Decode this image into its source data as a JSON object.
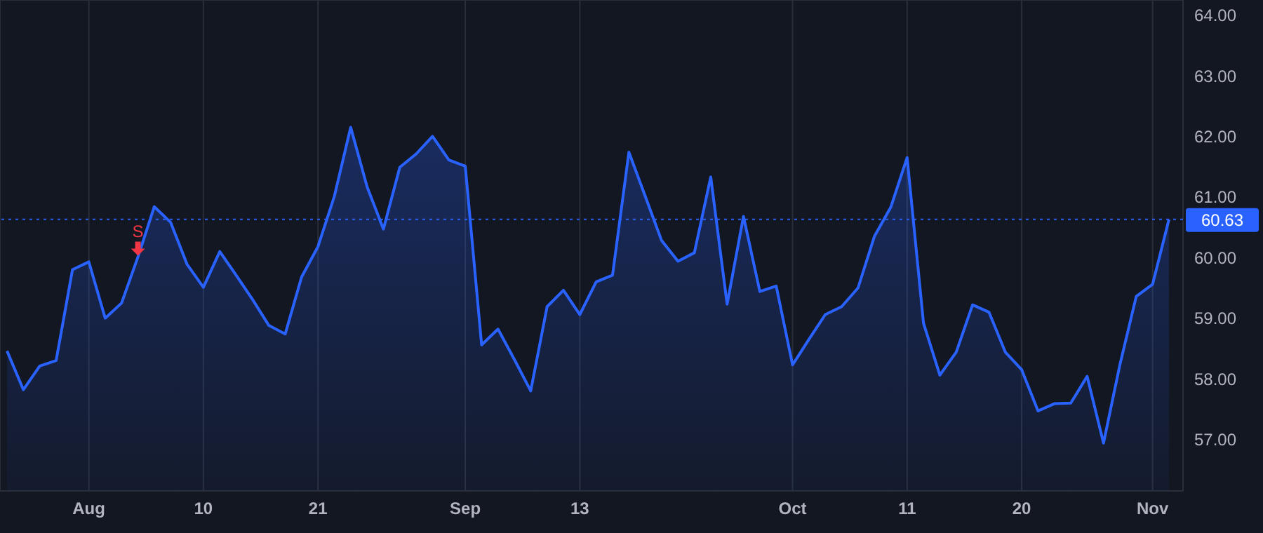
{
  "chart_data": {
    "type": "area",
    "categories": [
      null,
      null,
      null,
      null,
      null,
      "Aug",
      null,
      null,
      null,
      null,
      null,
      null,
      "10",
      null,
      null,
      null,
      null,
      null,
      null,
      "21",
      null,
      null,
      null,
      null,
      null,
      null,
      null,
      null,
      "Sep",
      null,
      null,
      null,
      null,
      null,
      null,
      "13",
      null,
      null,
      null,
      null,
      null,
      null,
      null,
      null,
      null,
      null,
      null,
      null,
      "Oct",
      null,
      null,
      null,
      null,
      null,
      null,
      "11",
      null,
      null,
      null,
      null,
      null,
      null,
      "20",
      null,
      null,
      null,
      null,
      null,
      null,
      null,
      "Nov",
      null
    ],
    "series": [
      {
        "color": "#2962ff",
        "values": [
          58.46,
          57.82,
          58.21,
          58.3,
          59.8,
          59.93,
          59.0,
          59.25,
          60.01,
          60.84,
          60.58,
          59.89,
          59.51,
          60.1,
          59.71,
          59.31,
          58.88,
          58.74,
          59.68,
          60.18,
          61.01,
          62.15,
          61.17,
          60.47,
          61.49,
          61.71,
          62.0,
          61.61,
          61.51,
          58.56,
          58.82,
          58.32,
          57.8,
          59.19,
          59.46,
          59.06,
          59.6,
          59.71,
          61.74,
          61.01,
          60.28,
          59.94,
          60.08,
          61.33,
          59.23,
          60.68,
          59.44,
          59.53,
          58.23,
          58.65,
          59.06,
          59.19,
          59.5,
          60.35,
          60.83,
          61.65,
          58.92,
          58.06,
          58.44,
          59.22,
          59.1,
          58.44,
          58.15,
          57.47,
          57.59,
          57.6,
          58.04,
          56.94,
          58.23,
          59.36,
          59.56,
          60.63
        ]
      }
    ],
    "ylim": [
      56.15,
      64.25
    ],
    "yticks": [
      {
        "value": 57,
        "label": "57.00"
      },
      {
        "value": 58,
        "label": "58.00"
      },
      {
        "value": 59,
        "label": "59.00"
      },
      {
        "value": 60,
        "label": "60.00"
      },
      {
        "value": 61,
        "label": "61.00"
      },
      {
        "value": 62,
        "label": "62.00"
      },
      {
        "value": 63,
        "label": "63.00"
      },
      {
        "value": 64,
        "label": "64.00"
      }
    ],
    "grid": true,
    "ref_lines": [
      {
        "axis": "y",
        "value": 60.63,
        "label": "60.63",
        "color": "#2962ff",
        "line_style": "dotted"
      }
    ],
    "annotations": [
      {
        "text": "S",
        "y": 60.01
      }
    ]
  }
}
